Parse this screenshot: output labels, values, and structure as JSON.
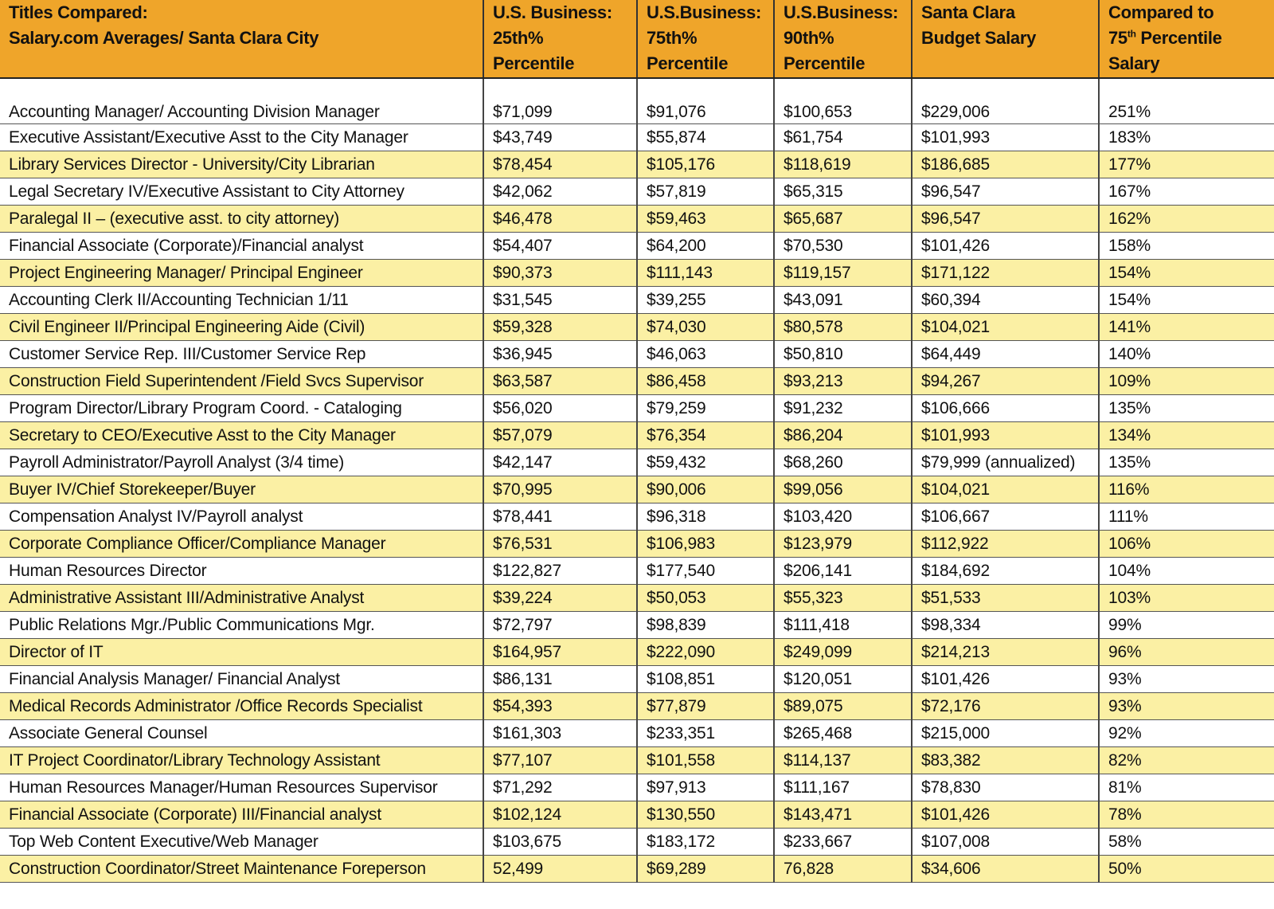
{
  "table": {
    "headers": [
      [
        "Titles Compared:",
        "Salary.com Averages/ Santa Clara City"
      ],
      [
        "U.S. Business:",
        "25th%",
        "Percentile"
      ],
      [
        "U.S.Business:",
        "75th%",
        "Percentile"
      ],
      [
        "U.S.Business:",
        "90th%",
        "Percentile"
      ],
      [
        "Santa Clara",
        "Budget Salary"
      ],
      [
        "Compared to",
        "75",
        "th",
        " Percentile",
        "Salary"
      ]
    ],
    "rows": [
      [
        "Accounting Manager/ Accounting Division Manager",
        "$71,099",
        "$91,076",
        "$100,653",
        "$229,006",
        "251%"
      ],
      [
        "Executive Assistant/Executive Asst to the City Manager",
        "$43,749",
        "$55,874",
        "$61,754",
        "$101,993",
        "183%"
      ],
      [
        "Library Services Director - University/City Librarian",
        "$78,454",
        "$105,176",
        "$118,619",
        "$186,685",
        "177%"
      ],
      [
        "Legal Secretary IV/Executive Assistant to City Attorney",
        "$42,062",
        "$57,819",
        "$65,315",
        "$96,547",
        "167%"
      ],
      [
        "Paralegal II – (executive asst. to city attorney)",
        "$46,478",
        "$59,463",
        "$65,687",
        "$96,547",
        "162%"
      ],
      [
        "Financial Associate (Corporate)/Financial analyst",
        "$54,407",
        "$64,200",
        "$70,530",
        "$101,426",
        "158%"
      ],
      [
        "Project Engineering Manager/ Principal Engineer",
        "$90,373",
        "$111,143",
        "$119,157",
        "$171,122",
        "154%"
      ],
      [
        "Accounting Clerk II/Accounting Technician 1/11",
        "$31,545",
        "$39,255",
        "$43,091",
        "$60,394",
        "154%"
      ],
      [
        "Civil Engineer II/Principal Engineering Aide (Civil)",
        "$59,328",
        "$74,030",
        "$80,578",
        "$104,021",
        "141%"
      ],
      [
        "Customer Service Rep. III/Customer Service Rep",
        "$36,945",
        "$46,063",
        "$50,810",
        "$64,449",
        "140%"
      ],
      [
        "Construction Field Superintendent /Field Svcs Supervisor",
        "$63,587",
        "$86,458",
        "$93,213",
        "$94,267",
        "109%"
      ],
      [
        "Program Director/Library Program Coord. - Cataloging",
        "$56,020",
        "$79,259",
        "$91,232",
        "$106,666",
        "135%"
      ],
      [
        "Secretary to CEO/Executive Asst to the City Manager",
        "$57,079",
        "$76,354",
        "$86,204",
        "$101,993",
        "134%"
      ],
      [
        "Payroll Administrator/Payroll Analyst (3/4 time)",
        "$42,147",
        "$59,432",
        "$68,260",
        "$79,999 (annualized)",
        "135%"
      ],
      [
        "Buyer IV/Chief Storekeeper/Buyer",
        "$70,995",
        "$90,006",
        "$99,056",
        "$104,021",
        "116%"
      ],
      [
        "Compensation Analyst IV/Payroll analyst",
        "$78,441",
        "$96,318",
        "$103,420",
        "$106,667",
        "111%"
      ],
      [
        "Corporate Compliance Officer/Compliance Manager",
        "$76,531",
        "$106,983",
        "$123,979",
        "$112,922",
        "106%"
      ],
      [
        "Human Resources Director",
        "$122,827",
        "$177,540",
        "$206,141",
        "$184,692",
        "104%"
      ],
      [
        "Administrative Assistant III/Administrative Analyst",
        "$39,224",
        "$50,053",
        "$55,323",
        "$51,533",
        "103%"
      ],
      [
        "Public Relations Mgr./Public Communications Mgr.",
        "$72,797",
        "$98,839",
        "$111,418",
        "$98,334",
        "99%"
      ],
      [
        "Director of IT",
        "$164,957",
        "$222,090",
        "$249,099",
        "$214,213",
        "96%"
      ],
      [
        "Financial Analysis Manager/ Financial Analyst",
        "$86,131",
        "$108,851",
        "$120,051",
        "$101,426",
        "93%"
      ],
      [
        "Medical Records Administrator /Office Records Specialist",
        "$54,393",
        "$77,879",
        "$89,075",
        "$72,176",
        "93%"
      ],
      [
        "Associate General Counsel",
        "$161,303",
        "$233,351",
        "$265,468",
        "$215,000",
        "92%"
      ],
      [
        "IT Project Coordinator/Library Technology Assistant",
        "$77,107",
        "$101,558",
        "$114,137",
        "$83,382",
        "82%"
      ],
      [
        "Human Resources Manager/Human Resources Supervisor",
        "$71,292",
        "$97,913",
        "$111,167",
        "$78,830",
        "81%"
      ],
      [
        "Financial Associate (Corporate) III/Financial analyst",
        "$102,124",
        "$130,550",
        "$143,471",
        "$101,426",
        "78%"
      ],
      [
        "Top Web Content Executive/Web Manager",
        "$103,675",
        "$183,172",
        "$233,667",
        "$107,008",
        "58%"
      ],
      [
        "Construction Coordinator/Street Maintenance Foreperson",
        "52,499",
        "$69,289",
        "76,828",
        "$34,606",
        "50%"
      ]
    ]
  },
  "colors": {
    "header": "#EFA52A",
    "alt_row": "#FBF0A4",
    "row": "#FFFFFF"
  }
}
